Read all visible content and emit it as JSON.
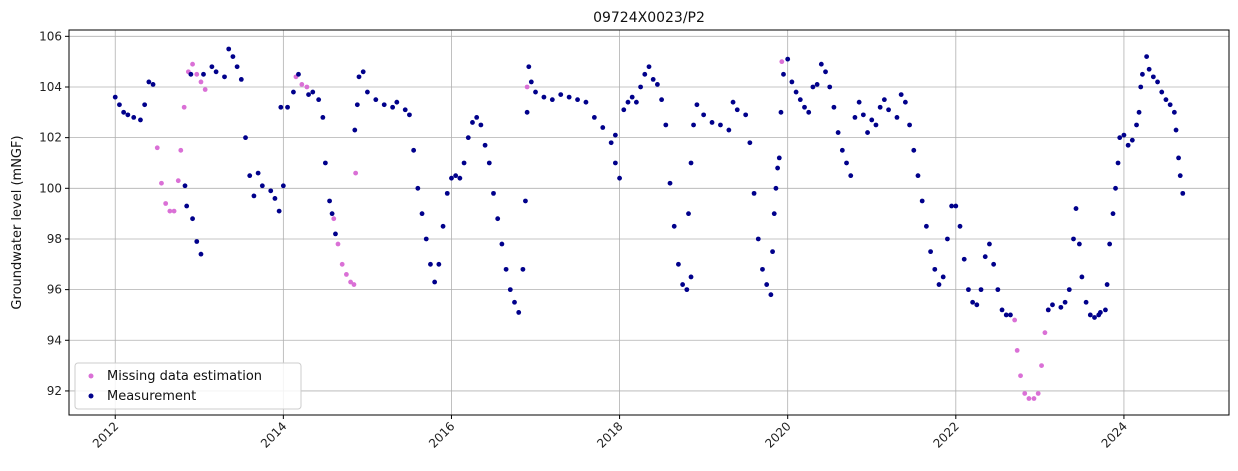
{
  "chart_data": {
    "type": "scatter",
    "title": "09724X0023/P2",
    "xlabel": "",
    "ylabel": "Groundwater level (mNGF)",
    "xlim": [
      2011.45,
      2025.25
    ],
    "ylim": [
      91.05,
      106.25
    ],
    "grid": true,
    "legend_position": "lower-left",
    "x_ticks": [
      2012,
      2014,
      2016,
      2018,
      2020,
      2022,
      2024
    ],
    "x_tick_labels": [
      "2012",
      "2014",
      "2016",
      "2018",
      "2020",
      "2022",
      "2024"
    ],
    "y_ticks": [
      92,
      94,
      96,
      98,
      100,
      102,
      104,
      106
    ],
    "y_tick_labels": [
      "92",
      "94",
      "96",
      "98",
      "100",
      "102",
      "104",
      "106"
    ],
    "series": [
      {
        "name": "Missing data estimation",
        "color": "#da70d6",
        "points": [
          [
            2012.5,
            101.6
          ],
          [
            2012.55,
            100.2
          ],
          [
            2012.6,
            99.4
          ],
          [
            2012.65,
            99.1
          ],
          [
            2012.7,
            99.1
          ],
          [
            2012.75,
            100.3
          ],
          [
            2012.78,
            101.5
          ],
          [
            2012.82,
            103.2
          ],
          [
            2012.87,
            104.6
          ],
          [
            2012.92,
            104.9
          ],
          [
            2012.97,
            104.5
          ],
          [
            2013.02,
            104.2
          ],
          [
            2013.07,
            103.9
          ],
          [
            2014.15,
            104.4
          ],
          [
            2014.22,
            104.1
          ],
          [
            2014.28,
            104.0
          ],
          [
            2014.6,
            98.8
          ],
          [
            2014.65,
            97.8
          ],
          [
            2014.7,
            97.0
          ],
          [
            2014.75,
            96.6
          ],
          [
            2014.8,
            96.3
          ],
          [
            2014.84,
            96.2
          ],
          [
            2014.86,
            100.6
          ],
          [
            2016.9,
            104.0
          ],
          [
            2019.93,
            105.0
          ],
          [
            2022.7,
            94.8
          ],
          [
            2022.73,
            93.6
          ],
          [
            2022.77,
            92.6
          ],
          [
            2022.82,
            91.9
          ],
          [
            2022.87,
            91.7
          ],
          [
            2022.93,
            91.7
          ],
          [
            2022.98,
            91.9
          ],
          [
            2023.02,
            93.0
          ],
          [
            2023.06,
            94.3
          ],
          [
            2023.1,
            95.2
          ]
        ]
      },
      {
        "name": "Measurement",
        "color": "#00008b",
        "points": [
          [
            2012.0,
            103.6
          ],
          [
            2012.05,
            103.3
          ],
          [
            2012.1,
            103.0
          ],
          [
            2012.15,
            102.9
          ],
          [
            2012.22,
            102.8
          ],
          [
            2012.3,
            102.7
          ],
          [
            2012.35,
            103.3
          ],
          [
            2012.4,
            104.2
          ],
          [
            2012.45,
            104.1
          ],
          [
            2012.92,
            98.8
          ],
          [
            2012.97,
            97.9
          ],
          [
            2013.02,
            97.4
          ],
          [
            2012.85,
            99.3
          ],
          [
            2012.83,
            100.1
          ],
          [
            2012.9,
            104.5
          ],
          [
            2013.05,
            104.5
          ],
          [
            2013.15,
            104.8
          ],
          [
            2013.2,
            104.6
          ],
          [
            2013.3,
            104.4
          ],
          [
            2013.35,
            105.5
          ],
          [
            2013.4,
            105.2
          ],
          [
            2013.45,
            104.8
          ],
          [
            2013.5,
            104.3
          ],
          [
            2013.55,
            102.0
          ],
          [
            2013.6,
            100.5
          ],
          [
            2013.65,
            99.7
          ],
          [
            2013.7,
            100.6
          ],
          [
            2013.75,
            100.1
          ],
          [
            2013.85,
            99.9
          ],
          [
            2013.9,
            99.6
          ],
          [
            2013.95,
            99.1
          ],
          [
            2014.0,
            100.1
          ],
          [
            2013.97,
            103.2
          ],
          [
            2014.05,
            103.2
          ],
          [
            2014.12,
            103.8
          ],
          [
            2014.18,
            104.5
          ],
          [
            2014.3,
            103.7
          ],
          [
            2014.35,
            103.8
          ],
          [
            2014.42,
            103.5
          ],
          [
            2014.47,
            102.8
          ],
          [
            2014.5,
            101.0
          ],
          [
            2014.55,
            99.5
          ],
          [
            2014.58,
            99.0
          ],
          [
            2014.62,
            98.2
          ],
          [
            2014.85,
            102.3
          ],
          [
            2014.88,
            103.3
          ],
          [
            2014.9,
            104.4
          ],
          [
            2014.95,
            104.6
          ],
          [
            2015.0,
            103.8
          ],
          [
            2015.1,
            103.5
          ],
          [
            2015.2,
            103.3
          ],
          [
            2015.3,
            103.2
          ],
          [
            2015.35,
            103.4
          ],
          [
            2015.45,
            103.1
          ],
          [
            2015.5,
            102.9
          ],
          [
            2015.55,
            101.5
          ],
          [
            2015.6,
            100.0
          ],
          [
            2015.65,
            99.0
          ],
          [
            2015.7,
            98.0
          ],
          [
            2015.75,
            97.0
          ],
          [
            2015.8,
            96.3
          ],
          [
            2015.85,
            97.0
          ],
          [
            2015.9,
            98.5
          ],
          [
            2015.95,
            99.8
          ],
          [
            2016.0,
            100.4
          ],
          [
            2016.05,
            100.5
          ],
          [
            2016.1,
            100.4
          ],
          [
            2016.15,
            101.0
          ],
          [
            2016.2,
            102.0
          ],
          [
            2016.25,
            102.6
          ],
          [
            2016.3,
            102.8
          ],
          [
            2016.35,
            102.5
          ],
          [
            2016.4,
            101.7
          ],
          [
            2016.45,
            101.0
          ],
          [
            2016.5,
            99.8
          ],
          [
            2016.55,
            98.8
          ],
          [
            2016.6,
            97.8
          ],
          [
            2016.65,
            96.8
          ],
          [
            2016.7,
            96.0
          ],
          [
            2016.75,
            95.5
          ],
          [
            2016.8,
            95.1
          ],
          [
            2016.85,
            96.8
          ],
          [
            2016.88,
            99.5
          ],
          [
            2016.9,
            103.0
          ],
          [
            2016.92,
            104.8
          ],
          [
            2016.95,
            104.2
          ],
          [
            2017.0,
            103.8
          ],
          [
            2017.1,
            103.6
          ],
          [
            2017.2,
            103.5
          ],
          [
            2017.3,
            103.7
          ],
          [
            2017.4,
            103.6
          ],
          [
            2017.5,
            103.5
          ],
          [
            2017.6,
            103.4
          ],
          [
            2017.7,
            102.8
          ],
          [
            2017.8,
            102.4
          ],
          [
            2017.9,
            101.8
          ],
          [
            2017.95,
            101.0
          ],
          [
            2018.0,
            100.4
          ],
          [
            2017.95,
            102.1
          ],
          [
            2018.05,
            103.1
          ],
          [
            2018.1,
            103.4
          ],
          [
            2018.15,
            103.6
          ],
          [
            2018.2,
            103.4
          ],
          [
            2018.25,
            104.0
          ],
          [
            2018.3,
            104.5
          ],
          [
            2018.35,
            104.8
          ],
          [
            2018.4,
            104.3
          ],
          [
            2018.45,
            104.1
          ],
          [
            2018.5,
            103.5
          ],
          [
            2018.55,
            102.5
          ],
          [
            2018.6,
            100.2
          ],
          [
            2018.65,
            98.5
          ],
          [
            2018.7,
            97.0
          ],
          [
            2018.75,
            96.2
          ],
          [
            2018.8,
            96.0
          ],
          [
            2018.85,
            96.5
          ],
          [
            2018.82,
            99.0
          ],
          [
            2018.85,
            101.0
          ],
          [
            2018.88,
            102.5
          ],
          [
            2018.92,
            103.3
          ],
          [
            2019.0,
            102.9
          ],
          [
            2019.1,
            102.6
          ],
          [
            2019.2,
            102.5
          ],
          [
            2019.3,
            102.3
          ],
          [
            2019.35,
            103.4
          ],
          [
            2019.4,
            103.1
          ],
          [
            2019.5,
            102.9
          ],
          [
            2019.55,
            101.8
          ],
          [
            2019.6,
            99.8
          ],
          [
            2019.65,
            98.0
          ],
          [
            2019.7,
            96.8
          ],
          [
            2019.75,
            96.2
          ],
          [
            2019.8,
            95.8
          ],
          [
            2019.82,
            97.5
          ],
          [
            2019.84,
            99.0
          ],
          [
            2019.86,
            100.0
          ],
          [
            2019.88,
            100.8
          ],
          [
            2019.9,
            101.2
          ],
          [
            2019.92,
            103.0
          ],
          [
            2019.95,
            104.5
          ],
          [
            2020.0,
            105.1
          ],
          [
            2020.05,
            104.2
          ],
          [
            2020.1,
            103.8
          ],
          [
            2020.15,
            103.5
          ],
          [
            2020.2,
            103.2
          ],
          [
            2020.25,
            103.0
          ],
          [
            2020.3,
            104.0
          ],
          [
            2020.35,
            104.1
          ],
          [
            2020.4,
            104.9
          ],
          [
            2020.45,
            104.6
          ],
          [
            2020.5,
            104.0
          ],
          [
            2020.55,
            103.2
          ],
          [
            2020.6,
            102.2
          ],
          [
            2020.65,
            101.5
          ],
          [
            2020.7,
            101.0
          ],
          [
            2020.75,
            100.5
          ],
          [
            2020.8,
            102.8
          ],
          [
            2020.85,
            103.4
          ],
          [
            2020.9,
            102.9
          ],
          [
            2020.95,
            102.2
          ],
          [
            2021.0,
            102.7
          ],
          [
            2021.05,
            102.5
          ],
          [
            2021.1,
            103.2
          ],
          [
            2021.15,
            103.5
          ],
          [
            2021.2,
            103.1
          ],
          [
            2021.3,
            102.8
          ],
          [
            2021.35,
            103.7
          ],
          [
            2021.4,
            103.4
          ],
          [
            2021.45,
            102.5
          ],
          [
            2021.5,
            101.5
          ],
          [
            2021.55,
            100.5
          ],
          [
            2021.6,
            99.5
          ],
          [
            2021.65,
            98.5
          ],
          [
            2021.7,
            97.5
          ],
          [
            2021.75,
            96.8
          ],
          [
            2021.8,
            96.2
          ],
          [
            2021.85,
            96.5
          ],
          [
            2021.9,
            98.0
          ],
          [
            2021.95,
            99.3
          ],
          [
            2022.0,
            99.3
          ],
          [
            2022.05,
            98.5
          ],
          [
            2022.1,
            97.2
          ],
          [
            2022.15,
            96.0
          ],
          [
            2022.2,
            95.5
          ],
          [
            2022.25,
            95.4
          ],
          [
            2022.3,
            96.0
          ],
          [
            2022.35,
            97.3
          ],
          [
            2022.4,
            97.8
          ],
          [
            2022.45,
            97.0
          ],
          [
            2022.5,
            96.0
          ],
          [
            2022.55,
            95.2
          ],
          [
            2022.6,
            95.0
          ],
          [
            2022.65,
            95.0
          ],
          [
            2023.1,
            95.2
          ],
          [
            2023.15,
            95.4
          ],
          [
            2023.25,
            95.3
          ],
          [
            2023.3,
            95.5
          ],
          [
            2023.35,
            96.0
          ],
          [
            2023.4,
            98.0
          ],
          [
            2023.43,
            99.2
          ],
          [
            2023.47,
            97.8
          ],
          [
            2023.5,
            96.5
          ],
          [
            2023.55,
            95.5
          ],
          [
            2023.6,
            95.0
          ],
          [
            2023.65,
            94.9
          ],
          [
            2023.7,
            95.0
          ],
          [
            2023.72,
            95.1
          ],
          [
            2023.78,
            95.2
          ],
          [
            2023.8,
            96.2
          ],
          [
            2023.83,
            97.8
          ],
          [
            2023.87,
            99.0
          ],
          [
            2023.9,
            100.0
          ],
          [
            2023.93,
            101.0
          ],
          [
            2023.95,
            102.0
          ],
          [
            2024.0,
            102.1
          ],
          [
            2024.05,
            101.7
          ],
          [
            2024.1,
            101.9
          ],
          [
            2024.15,
            102.5
          ],
          [
            2024.18,
            103.0
          ],
          [
            2024.2,
            104.0
          ],
          [
            2024.22,
            104.5
          ],
          [
            2024.27,
            105.2
          ],
          [
            2024.3,
            104.7
          ],
          [
            2024.35,
            104.4
          ],
          [
            2024.4,
            104.2
          ],
          [
            2024.45,
            103.8
          ],
          [
            2024.5,
            103.5
          ],
          [
            2024.55,
            103.3
          ],
          [
            2024.6,
            103.0
          ],
          [
            2024.62,
            102.3
          ],
          [
            2024.65,
            101.2
          ],
          [
            2024.67,
            100.5
          ],
          [
            2024.7,
            99.8
          ]
        ]
      }
    ]
  }
}
